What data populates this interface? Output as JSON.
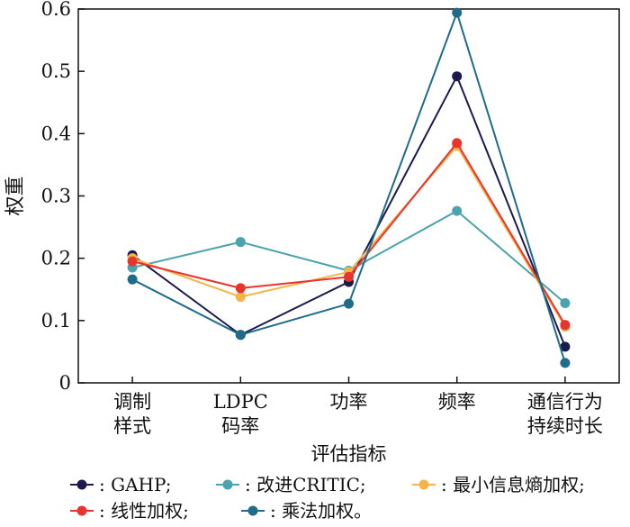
{
  "chart_data": {
    "type": "line",
    "title": "",
    "xlabel": "评估指标",
    "ylabel": "权重",
    "ylim": [
      0,
      0.6
    ],
    "yticks": [
      "0",
      "0.1",
      "0.2",
      "0.3",
      "0.4",
      "0.5",
      "0.6"
    ],
    "yticks_values": [
      0,
      0.1,
      0.2,
      0.3,
      0.4,
      0.5,
      0.6
    ],
    "categories": [
      [
        "调制",
        "样式"
      ],
      [
        "LDPC",
        "码率"
      ],
      [
        "功率"
      ],
      [
        "频率"
      ],
      [
        "通信行为",
        "持续时长"
      ]
    ],
    "grid": false,
    "legend_position": "bottom",
    "series": [
      {
        "name": ": GAHP;",
        "color": "#1a1a4e",
        "values": [
          0.205,
          0.077,
          0.162,
          0.492,
          0.058
        ]
      },
      {
        "name": ": 改进CRITIC;",
        "color": "#4aa3ad",
        "values": [
          0.185,
          0.226,
          0.18,
          0.276,
          0.128
        ]
      },
      {
        "name": ": 最小信息熵加权;",
        "color": "#f5b447",
        "values": [
          0.2,
          0.138,
          0.178,
          0.38,
          0.09
        ]
      },
      {
        "name": ": 线性加权;",
        "color": "#e8342c",
        "values": [
          0.195,
          0.152,
          0.17,
          0.385,
          0.093
        ]
      },
      {
        "name": ": 乘法加权。",
        "color": "#1e6b8a",
        "values": [
          0.166,
          0.077,
          0.127,
          0.594,
          0.032
        ]
      }
    ]
  }
}
